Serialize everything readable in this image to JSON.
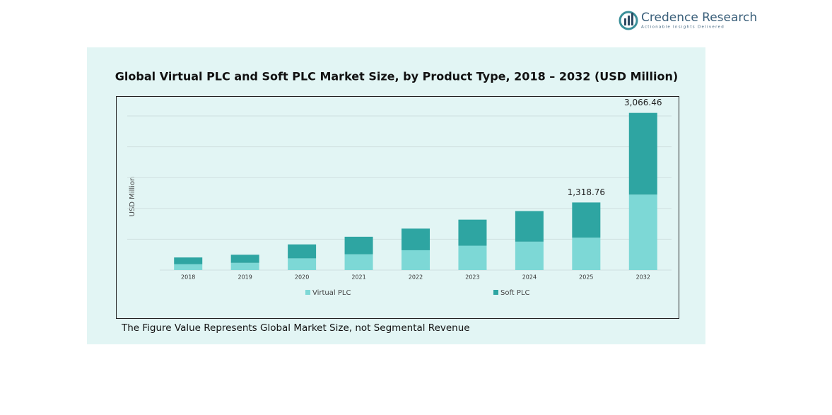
{
  "logo": {
    "name": "Credence Research",
    "tagline": "Actionable Insights Delivered"
  },
  "chart_data": {
    "type": "stacked_bar",
    "title": "Global Virtual PLC and Soft PLC Market Size, by Product Type, 2018 – 2032 (USD Million)",
    "y_label": "USD Million",
    "categories": [
      "2018",
      "2019",
      "2020",
      "2021",
      "2022",
      "2023",
      "2024",
      "2025",
      "2032"
    ],
    "series": [
      {
        "name": "Virtual PLC",
        "color": "#7dd8d6",
        "values": [
          114,
          141,
          229,
          308,
          387,
          475,
          554,
          633,
          1472
        ]
      },
      {
        "name": "Soft PLC",
        "color": "#2ea5a2",
        "values": [
          132,
          158,
          272,
          342,
          422,
          509,
          597,
          685.76,
          1594.46
        ]
      }
    ],
    "totals": [
      null,
      null,
      null,
      null,
      null,
      null,
      null,
      1318.76,
      3066.46
    ],
    "total_labels": [
      null,
      null,
      null,
      null,
      null,
      null,
      null,
      "1,318.76",
      "3,066.46"
    ],
    "ylim": [
      0,
      3200
    ],
    "legend": "bottom",
    "footnote": "The Figure Value Represents Global Market Size, not Segmental Revenue"
  }
}
